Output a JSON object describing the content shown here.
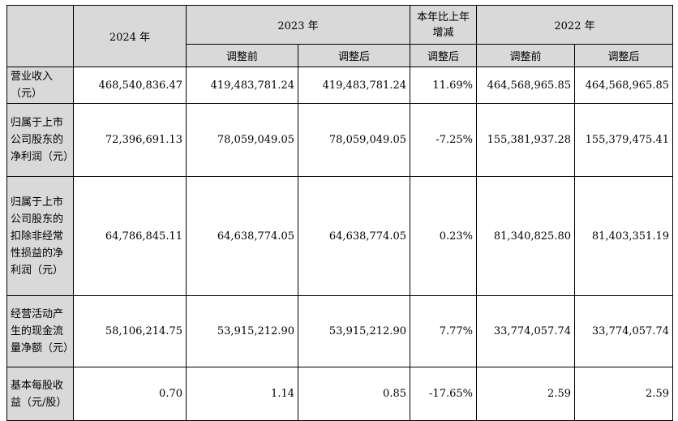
{
  "header": {
    "y2024": "2024 年",
    "y2023": "2023 年",
    "change": "本年比上年增减",
    "y2022": "2022 年",
    "before": "调整前",
    "after": "调整后",
    "change_after": "调整后",
    "before_2022": "调整前",
    "after_2022": "调整后"
  },
  "rows": [
    {
      "label": "营业收入（元）",
      "v2024": "468,540,836.47",
      "v2023_before": "419,483,781.24",
      "v2023_after": "419,483,781.24",
      "change": "11.69%",
      "v2022_before": "464,568,965.85",
      "v2022_after": "464,568,965.85"
    },
    {
      "label": "归属于上市公司股东的净利润（元）",
      "v2024": "72,396,691.13",
      "v2023_before": "78,059,049.05",
      "v2023_after": "78,059,049.05",
      "change": "-7.25%",
      "v2022_before": "155,381,937.28",
      "v2022_after": "155,379,475.41"
    },
    {
      "label": "归属于上市公司股东的扣除非经常性损益的净利润（元）",
      "v2024": "64,786,845.11",
      "v2023_before": "64,638,774.05",
      "v2023_after": "64,638,774.05",
      "change": "0.23%",
      "v2022_before": "81,340,825.80",
      "v2022_after": "81,403,351.19"
    },
    {
      "label": "经营活动产生的现金流量净额（元）",
      "v2024": "58,106,214.75",
      "v2023_before": "53,915,212.90",
      "v2023_after": "53,915,212.90",
      "change": "7.77%",
      "v2022_before": "33,774,057.74",
      "v2022_after": "33,774,057.74"
    },
    {
      "label": "基本每股收益（元/股）",
      "v2024": "0.70",
      "v2023_before": "1.14",
      "v2023_after": "0.85",
      "change": "-17.65%",
      "v2022_before": "2.59",
      "v2022_after": "2.59"
    }
  ]
}
